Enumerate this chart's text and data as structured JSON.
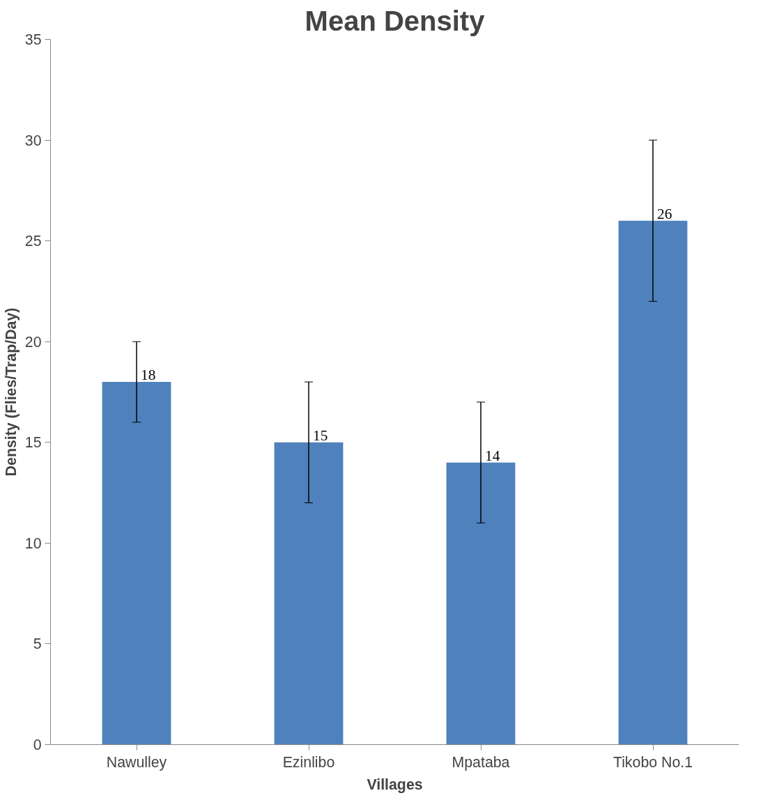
{
  "chart_data": {
    "type": "bar",
    "title": "Mean Density",
    "xlabel": "Villages",
    "ylabel": "Density (Flies/Trap/Day)",
    "categories": [
      "Nawulley",
      "Ezinlibo",
      "Mpataba",
      "Tikobo No.1"
    ],
    "values": [
      18,
      15,
      14,
      26
    ],
    "errors": [
      2,
      3,
      3,
      4
    ],
    "color": "#4f81bd",
    "ylim": [
      0,
      35
    ],
    "yticks": [
      0,
      5,
      10,
      15,
      20,
      25,
      30,
      35
    ],
    "data_labels": true,
    "grid": false
  }
}
